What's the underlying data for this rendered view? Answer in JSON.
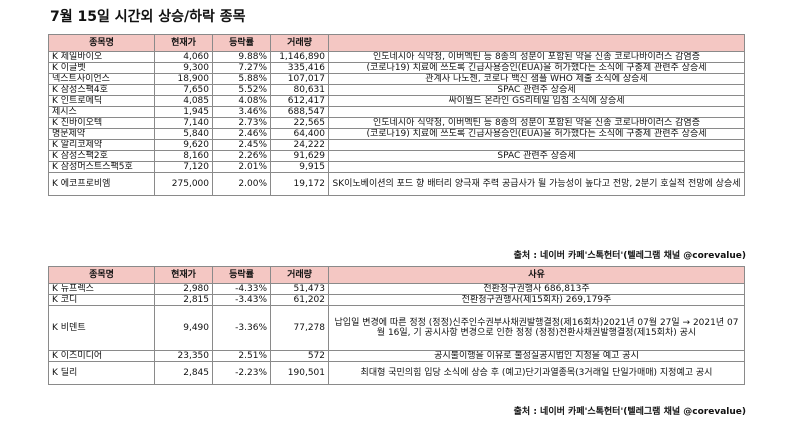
{
  "title": "7월 15일  시간외 상승/하락 종목",
  "table1": {
    "headers": [
      "종목명",
      "현재가",
      "등락률",
      "거래량",
      ""
    ],
    "rows": [
      {
        "name": "K 제일바이오",
        "price": "4,060",
        "rate": "9.88%",
        "volume": "1,146,890",
        "reason": "인도네시아 식약청, 이버멕틴 등 8종의 성분이 포함된 약을 신종 코로나바이러스 감염증"
      },
      {
        "name": "K 이글벳",
        "price": "9,300",
        "rate": "7.27%",
        "volume": "335,416",
        "reason": "(코로나19) 치료에 쓰도록 긴급사용승인(EUA)을 허가했다는 소식에 구충제 관련주 상승세"
      },
      {
        "name": "넥스트사이언스",
        "price": "18,900",
        "rate": "5.88%",
        "volume": "107,017",
        "reason": "관계사 나노젠, 코로나 백신 샘플 WHO 제출 소식에 상승세"
      },
      {
        "name": "K 삼성스팩4호",
        "price": "7,650",
        "rate": "5.52%",
        "volume": "80,631",
        "reason": "SPAC 관련주 상승세"
      },
      {
        "name": "K 인트로메딕",
        "price": "4,085",
        "rate": "4.08%",
        "volume": "612,417",
        "reason": "싸이월드 온라인 GS리테일 입점 소식에 상승세"
      },
      {
        "name": "제시스",
        "price": "1,945",
        "rate": "3.46%",
        "volume": "688,547",
        "reason": ""
      },
      {
        "name": "K 진바이오텍",
        "price": "7,140",
        "rate": "2.73%",
        "volume": "22,565",
        "reason": "인도네시아 식약청, 이버멕틴 등 8종의 성분이 포함된 약을 신종 코로나바이러스 감염증"
      },
      {
        "name": "명문제약",
        "price": "5,840",
        "rate": "2.46%",
        "volume": "64,400",
        "reason": "(코로나19) 치료에 쓰도록 긴급사용승인(EUA)을 허가했다는 소식에 구충제 관련주 상승세"
      },
      {
        "name": "K 알리코제약",
        "price": "9,620",
        "rate": "2.45%",
        "volume": "24,222",
        "reason": ""
      },
      {
        "name": "K 삼성스팩2호",
        "price": "8,160",
        "rate": "2.26%",
        "volume": "91,629",
        "reason": "SPAC 관련주 상승세"
      },
      {
        "name": "K 삼성머스트스팩5호",
        "price": "7,120",
        "rate": "2.01%",
        "volume": "9,915",
        "reason": ""
      },
      {
        "name": "K 에코프로비엠",
        "price": "275,000",
        "rate": "2.00%",
        "volume": "19,172",
        "reason": "SK이노베이션의 포드 향 배터리 양극재 주력 공급사가 될 가능성이 높다고 전망, 2분기 호실적 전망에 상승세"
      }
    ]
  },
  "source1": "출처 : 네이버 카페'스톡헌터'(텔레그램 채널 @corevalue)",
  "table2": {
    "headers": [
      "종목명",
      "현재가",
      "등락률",
      "거래량",
      "사유"
    ],
    "rows": [
      {
        "name": "K 뉴프렉스",
        "price": "2,980",
        "rate": "-4.33%",
        "volume": "51,473",
        "reason": "전환청구권행사 686,813주"
      },
      {
        "name": "K 코디",
        "price": "2,815",
        "rate": "-3.43%",
        "volume": "61,202",
        "reason": "전환청구권행사(제15회차) 269,179주"
      },
      {
        "name": "K 비덴트",
        "price": "9,490",
        "rate": "-3.36%",
        "volume": "77,278",
        "reason": "납입일 변경에 따른 정정 (정정)신주인수권부사채권발행결정(제16회차)2021년 07월 27일 → 2021년 07월 16일, 기 공시사항 변경으로 인한 정정 (정정)전환사채권발행결정(제15회차) 공시"
      },
      {
        "name": "K 이즈미디어",
        "price": "23,350",
        "rate": "2.51%",
        "volume": "572",
        "reason": "공시불이행을 이유로 불성실공시법인 지정을 예고 공시"
      },
      {
        "name": "K 딜리",
        "price": "2,845",
        "rate": "-2.23%",
        "volume": "190,501",
        "reason": "최대형 국민의힘 입당 소식에 상승 후 (예고)단기과열종목(3거래일 단일가매매) 지정예고 공시"
      }
    ]
  },
  "source2": "출처 : 네이버 카페'스톡헌터'(텔레그램 채널 @corevalue)"
}
